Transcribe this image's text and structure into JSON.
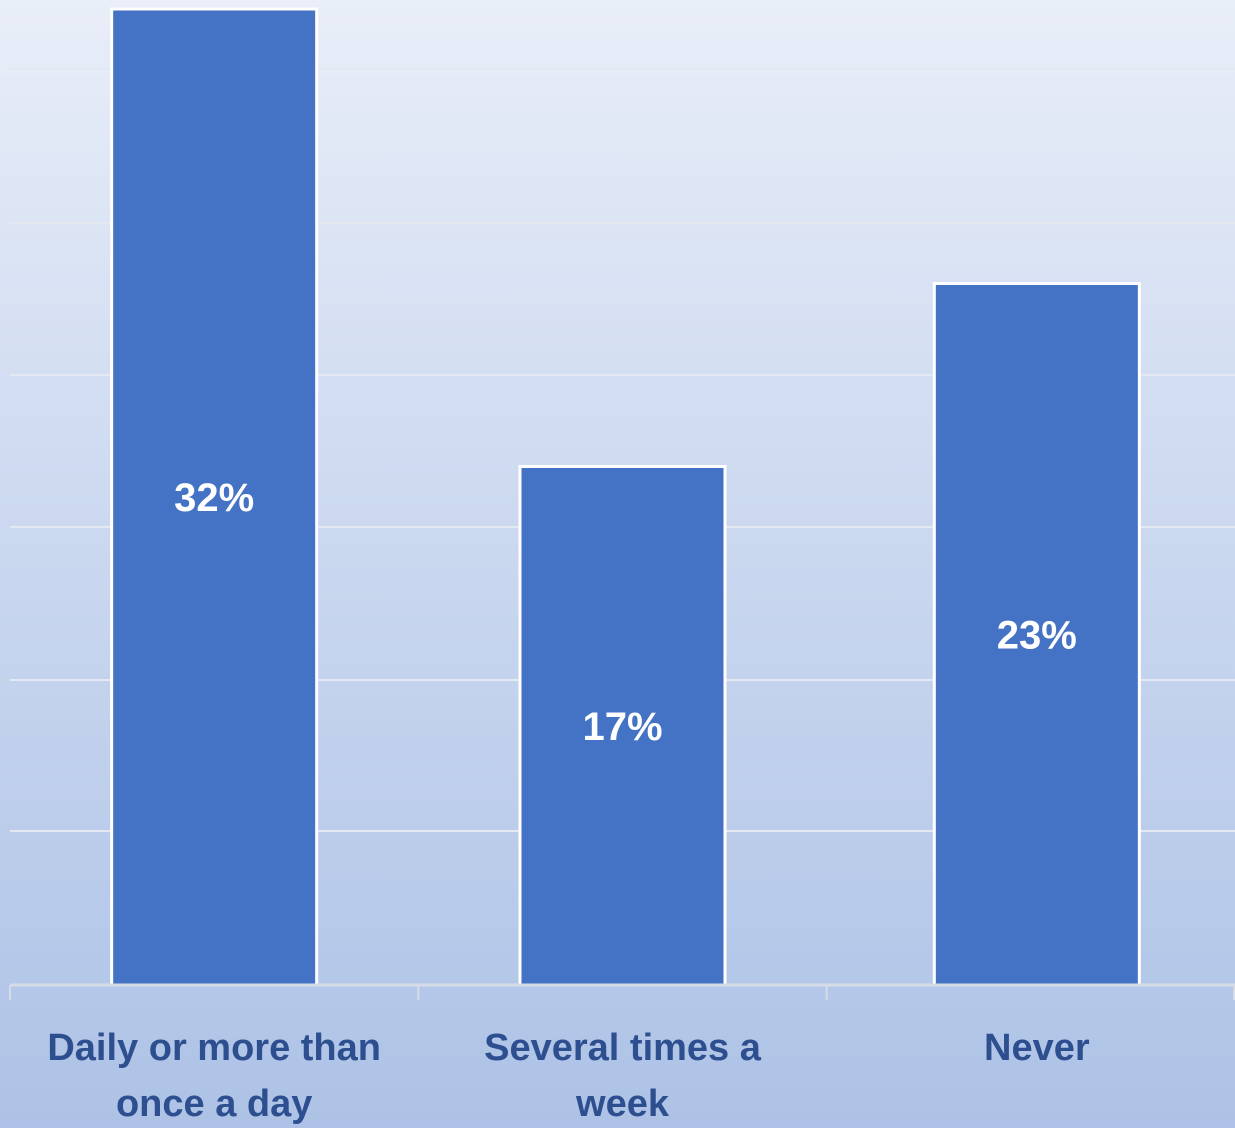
{
  "chart_data": {
    "type": "bar",
    "categories": [
      [
        "Daily or more than",
        "once a day"
      ],
      [
        "Several times a",
        "week"
      ],
      [
        "Never"
      ]
    ],
    "values": [
      32,
      17,
      23
    ],
    "data_labels": [
      "32%",
      "17%",
      "23%"
    ],
    "ylim": [
      0,
      32
    ],
    "grid": true,
    "legend": "none",
    "bar_color": "#4472c4",
    "bar_outline_color": "#ffffff",
    "label_color": "#2e4f8f",
    "gridline_color": "#e3e8f1",
    "axis_color": "#d6dce6"
  }
}
